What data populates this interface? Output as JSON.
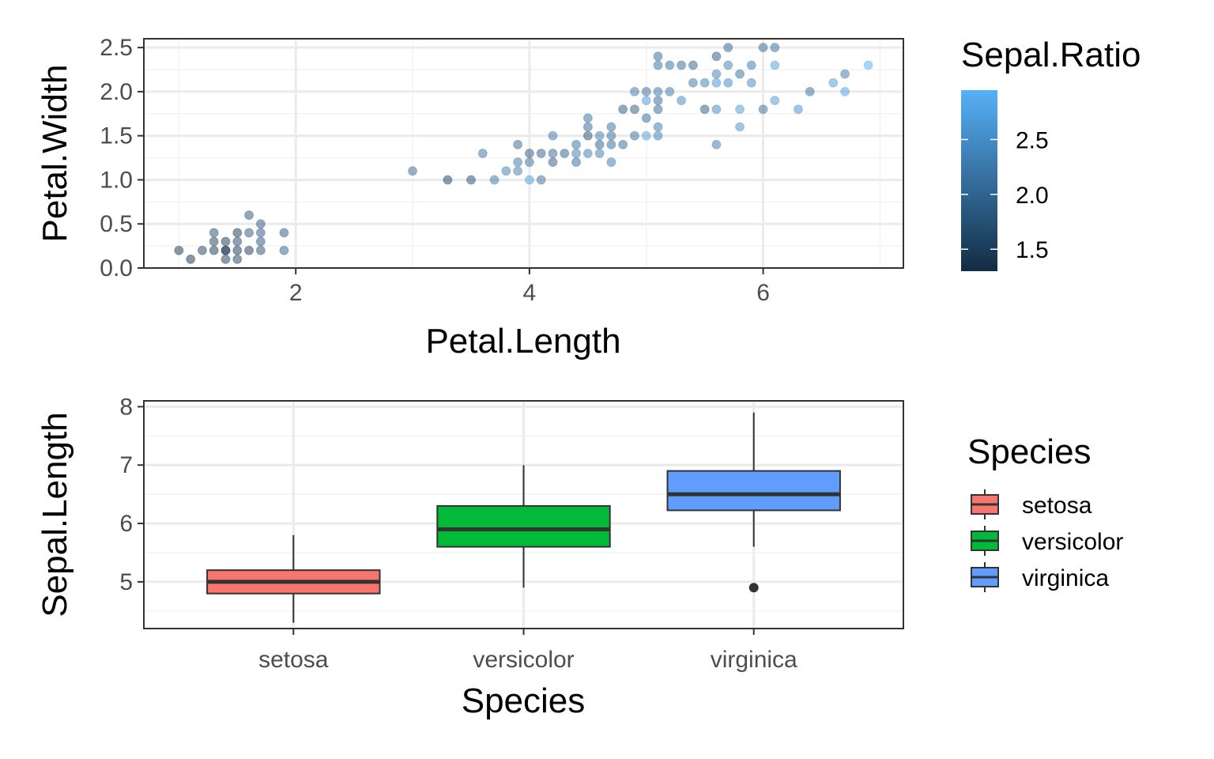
{
  "colors": {
    "panel_border": "#333333",
    "grid_major": "#ebebeb",
    "grid_minor": "#f3f3f3",
    "tick": "#333333",
    "gradient_low": "#132b43",
    "gradient_high": "#56b1f7",
    "box_line": "#333333"
  },
  "chart_data": [
    {
      "type": "scatter",
      "xlabel": "Petal.Length",
      "ylabel": "Petal.Width",
      "xlim": [
        0.7,
        7.2
      ],
      "ylim": [
        0,
        2.6
      ],
      "x_ticks": [
        2,
        4,
        6
      ],
      "x_tick_labels": [
        "2",
        "4",
        "6"
      ],
      "y_ticks": [
        0,
        0.5,
        1,
        1.5,
        2,
        2.5
      ],
      "y_tick_labels": [
        "0.0",
        "0.5",
        "1.0",
        "1.5",
        "2.0",
        "2.5"
      ],
      "grid": true,
      "color_legend": {
        "title": "Sepal.Ratio",
        "range": [
          1.3,
          2.95
        ],
        "ticks": [
          1.5,
          2.0,
          2.5
        ],
        "tick_labels": [
          "1.5",
          "2.0",
          "2.5"
        ],
        "position": "right"
      },
      "point_alpha": 0.5,
      "points": [
        [
          1.0,
          0.2,
          1.4
        ],
        [
          1.1,
          0.1,
          1.3
        ],
        [
          1.2,
          0.2,
          1.5
        ],
        [
          1.3,
          0.2,
          1.4
        ],
        [
          1.3,
          0.4,
          1.7
        ],
        [
          1.3,
          0.3,
          1.5
        ],
        [
          1.4,
          0.2,
          1.4
        ],
        [
          1.4,
          0.2,
          1.5
        ],
        [
          1.4,
          0.3,
          1.4
        ],
        [
          1.4,
          0.1,
          1.45
        ],
        [
          1.5,
          0.2,
          1.4
        ],
        [
          1.5,
          0.4,
          1.4
        ],
        [
          1.5,
          0.1,
          1.5
        ],
        [
          1.5,
          0.3,
          1.6
        ],
        [
          1.6,
          0.2,
          1.4
        ],
        [
          1.6,
          0.6,
          1.75
        ],
        [
          1.6,
          0.4,
          1.8
        ],
        [
          1.7,
          0.2,
          1.7
        ],
        [
          1.7,
          0.3,
          1.75
        ],
        [
          1.7,
          0.5,
          1.8
        ],
        [
          1.7,
          0.4,
          1.85
        ],
        [
          1.9,
          0.4,
          1.8
        ],
        [
          1.9,
          0.2,
          1.9
        ],
        [
          3.0,
          1.1,
          2.0
        ],
        [
          3.3,
          1.0,
          1.5
        ],
        [
          3.5,
          1.0,
          1.65
        ],
        [
          3.6,
          1.3,
          2.15
        ],
        [
          3.7,
          1.0,
          2.2
        ],
        [
          3.8,
          1.1,
          2.3
        ],
        [
          3.9,
          1.1,
          2.3
        ],
        [
          3.9,
          1.2,
          2.2
        ],
        [
          3.9,
          1.4,
          2.0
        ],
        [
          4.0,
          1.0,
          2.7
        ],
        [
          4.0,
          1.2,
          2.1
        ],
        [
          4.0,
          1.3,
          1.8
        ],
        [
          4.1,
          1.0,
          2.15
        ],
        [
          4.1,
          1.3,
          1.9
        ],
        [
          4.2,
          1.2,
          1.85
        ],
        [
          4.2,
          1.3,
          2.0
        ],
        [
          4.2,
          1.5,
          2.2
        ],
        [
          4.3,
          1.3,
          1.9
        ],
        [
          4.4,
          1.2,
          2.0
        ],
        [
          4.4,
          1.3,
          2.3
        ],
        [
          4.4,
          1.4,
          2.1
        ],
        [
          4.5,
          1.5,
          1.7
        ],
        [
          4.5,
          1.6,
          2.0
        ],
        [
          4.5,
          1.7,
          2.1
        ],
        [
          4.5,
          1.3,
          2.3
        ],
        [
          4.6,
          1.3,
          2.3
        ],
        [
          4.6,
          1.5,
          2.3
        ],
        [
          4.6,
          1.4,
          1.9
        ],
        [
          4.7,
          1.2,
          2.2
        ],
        [
          4.7,
          1.4,
          2.0
        ],
        [
          4.7,
          1.5,
          2.05
        ],
        [
          4.7,
          1.6,
          2.1
        ],
        [
          4.8,
          1.8,
          1.8
        ],
        [
          4.8,
          1.4,
          2.0
        ],
        [
          4.9,
          1.5,
          2.1
        ],
        [
          4.9,
          1.8,
          1.8
        ],
        [
          4.9,
          2.0,
          2.2
        ],
        [
          5.0,
          1.5,
          2.7
        ],
        [
          5.0,
          1.7,
          2.0
        ],
        [
          5.0,
          1.9,
          2.6
        ],
        [
          5.0,
          2.0,
          2.1
        ],
        [
          5.1,
          1.5,
          2.3
        ],
        [
          5.1,
          1.6,
          2.2
        ],
        [
          5.1,
          1.8,
          2.0
        ],
        [
          5.1,
          1.9,
          2.0
        ],
        [
          5.1,
          2.0,
          2.2
        ],
        [
          5.1,
          2.3,
          2.1
        ],
        [
          5.1,
          2.4,
          2.0
        ],
        [
          5.2,
          2.0,
          2.2
        ],
        [
          5.2,
          2.3,
          2.1
        ],
        [
          5.3,
          1.9,
          2.4
        ],
        [
          5.3,
          2.3,
          2.0
        ],
        [
          5.4,
          2.1,
          2.2
        ],
        [
          5.4,
          2.3,
          1.9
        ],
        [
          5.5,
          1.8,
          1.8
        ],
        [
          5.5,
          2.1,
          2.3
        ],
        [
          5.6,
          1.4,
          2.2
        ],
        [
          5.6,
          1.8,
          2.4
        ],
        [
          5.6,
          2.1,
          2.5
        ],
        [
          5.6,
          2.2,
          2.3
        ],
        [
          5.6,
          2.4,
          1.8
        ],
        [
          5.7,
          2.1,
          2.4
        ],
        [
          5.7,
          2.3,
          2.3
        ],
        [
          5.7,
          2.5,
          1.95
        ],
        [
          5.8,
          1.6,
          2.5
        ],
        [
          5.8,
          1.8,
          2.6
        ],
        [
          5.8,
          2.2,
          2.1
        ],
        [
          5.9,
          2.1,
          2.4
        ],
        [
          5.9,
          2.3,
          2.2
        ],
        [
          6.0,
          1.8,
          2.1
        ],
        [
          6.0,
          2.5,
          2.0
        ],
        [
          6.1,
          1.9,
          2.6
        ],
        [
          6.1,
          2.3,
          2.7
        ],
        [
          6.1,
          2.5,
          2.1
        ],
        [
          6.3,
          1.8,
          2.5
        ],
        [
          6.4,
          2.0,
          2.1
        ],
        [
          6.6,
          2.1,
          2.6
        ],
        [
          6.7,
          2.0,
          2.7
        ],
        [
          6.7,
          2.2,
          2.2
        ],
        [
          6.9,
          2.3,
          2.9
        ]
      ]
    },
    {
      "type": "boxplot",
      "xlabel": "Species",
      "ylabel": "Sepal.Length",
      "ylim": [
        4.2,
        8.1
      ],
      "y_ticks": [
        5,
        6,
        7,
        8
      ],
      "y_tick_labels": [
        "5",
        "6",
        "7",
        "8"
      ],
      "grid": true,
      "categories": [
        "setosa",
        "versicolor",
        "virginica"
      ],
      "boxes": [
        {
          "name": "setosa",
          "color": "#f8766d",
          "min": 4.3,
          "q1": 4.8,
          "median": 5.0,
          "q3": 5.2,
          "max": 5.8,
          "outliers": []
        },
        {
          "name": "versicolor",
          "color": "#00ba38",
          "min": 4.9,
          "q1": 5.6,
          "median": 5.9,
          "q3": 6.3,
          "max": 7.0,
          "outliers": []
        },
        {
          "name": "virginica",
          "color": "#619cff",
          "min": 5.6,
          "q1": 6.225,
          "median": 6.5,
          "q3": 6.9,
          "max": 7.9,
          "outliers": [
            4.9
          ]
        }
      ],
      "legend": {
        "title": "Species",
        "position": "right",
        "entries": [
          "setosa",
          "versicolor",
          "virginica"
        ]
      }
    }
  ]
}
